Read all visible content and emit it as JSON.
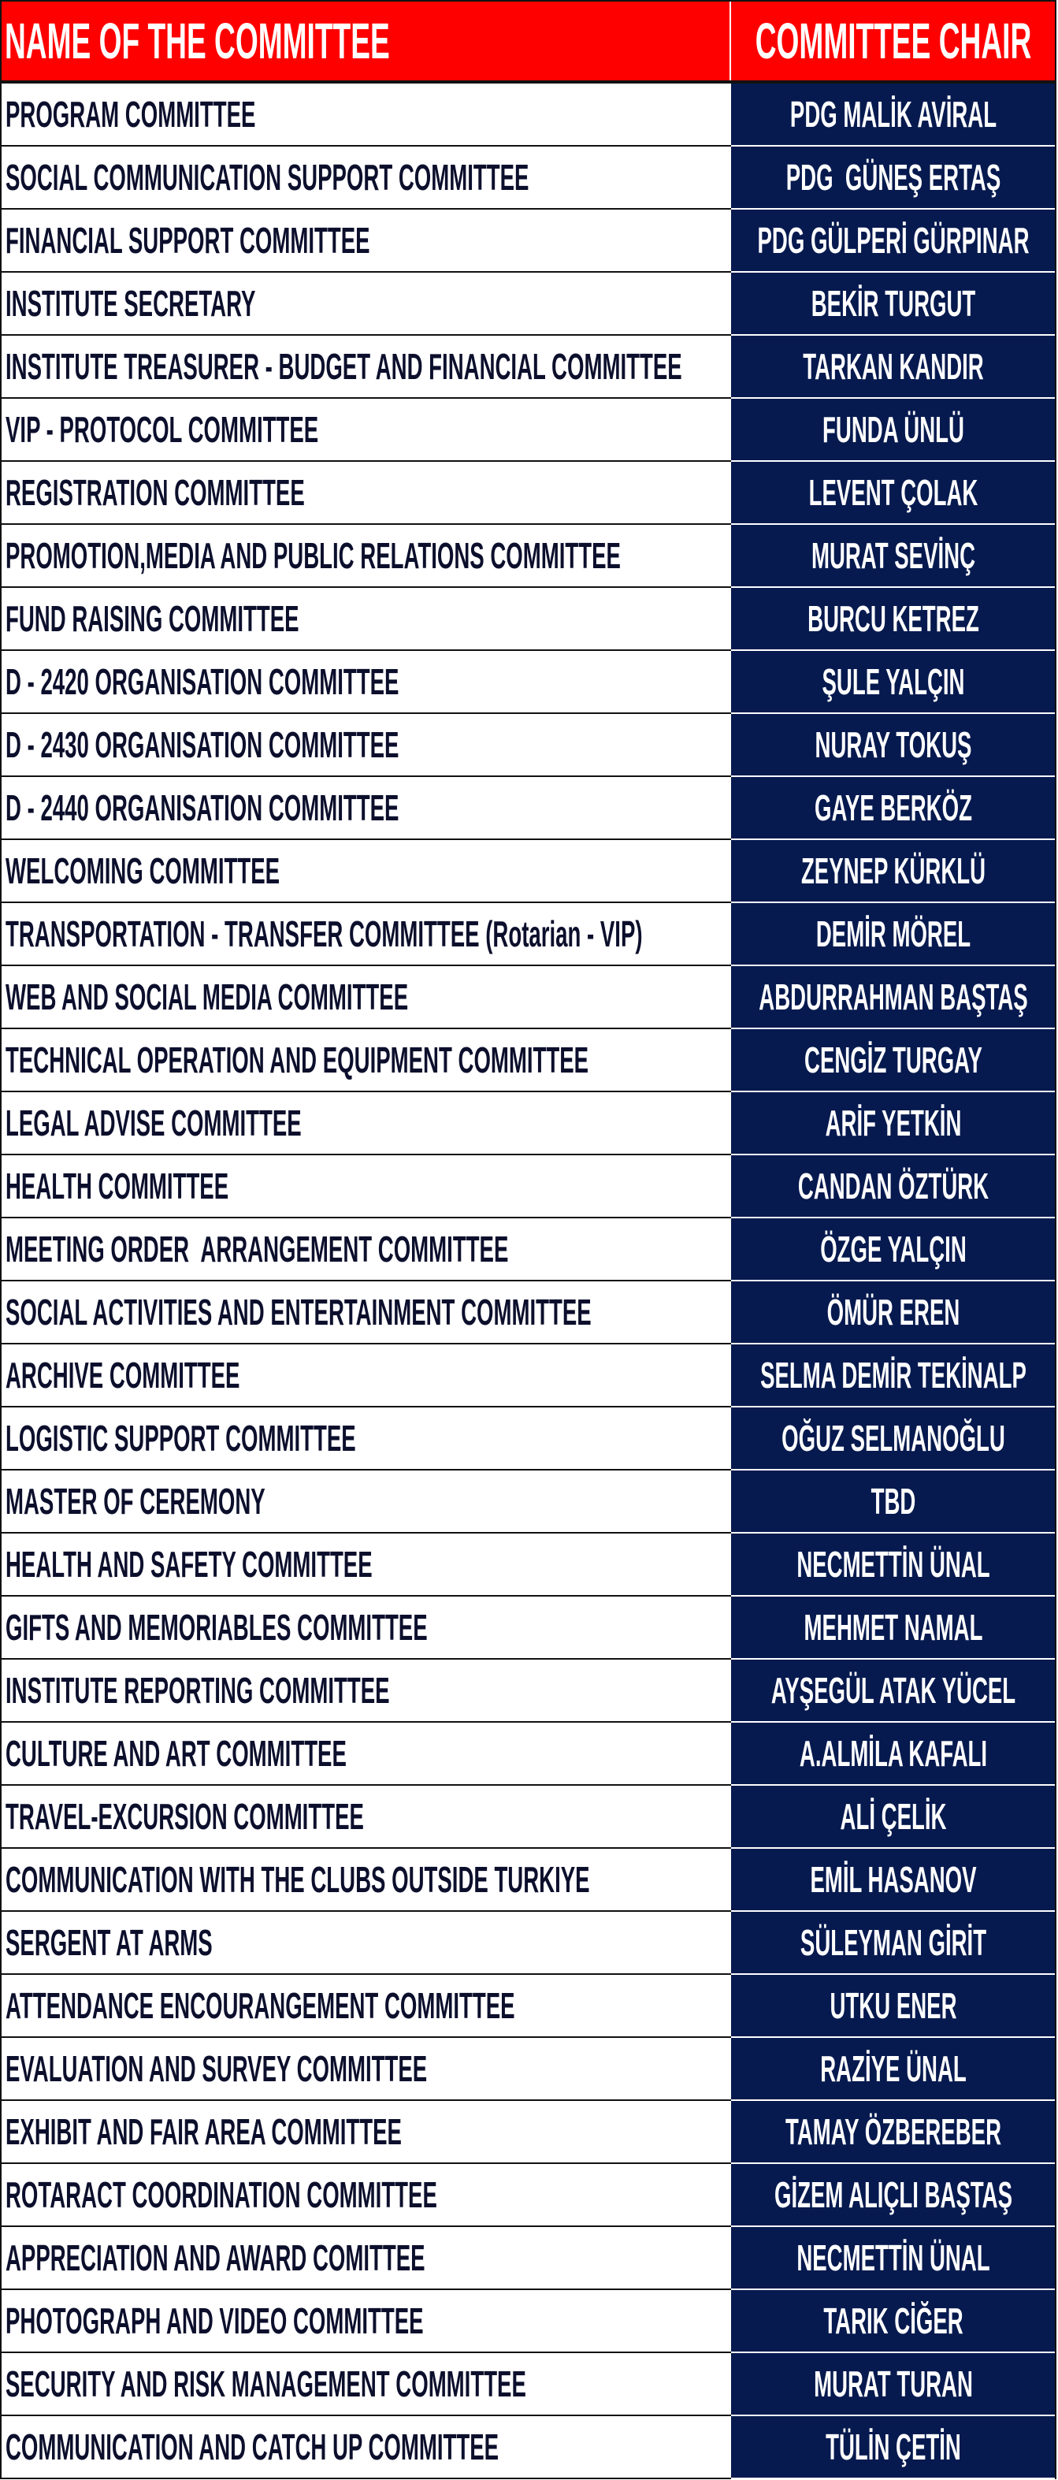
{
  "header": {
    "committee": "NAME OF THE COMMITTEE",
    "chair": "COMMITTEE CHAIR"
  },
  "colors": {
    "header_bg": "#ff0000",
    "chair_bg": "#061a4f",
    "header_text": "#ffffff"
  },
  "rows": [
    {
      "committee": "PROGRAM COMMITTEE",
      "chair": "PDG MALİK AVİRAL"
    },
    {
      "committee": "SOCIAL COMMUNICATION SUPPORT COMMITTEE",
      "chair": "PDG  GÜNEŞ ERTAŞ"
    },
    {
      "committee": "FINANCIAL SUPPORT COMMITTEE",
      "chair": "PDG GÜLPERİ GÜRPINAR"
    },
    {
      "committee": "INSTITUTE SECRETARY",
      "chair": "BEKİR TURGUT"
    },
    {
      "committee": "INSTITUTE TREASURER - BUDGET AND FINANCIAL COMMITTEE",
      "chair": "TARKAN KANDIR"
    },
    {
      "committee": "VIP - PROTOCOL COMMITTEE",
      "chair": "FUNDA ÜNLÜ"
    },
    {
      "committee": "REGISTRATION COMMITTEE",
      "chair": "LEVENT ÇOLAK"
    },
    {
      "committee": "PROMOTION,MEDIA AND PUBLIC RELATIONS COMMITTEE",
      "chair": "MURAT SEVİNÇ"
    },
    {
      "committee": "FUND RAISING COMMITTEE",
      "chair": "BURCU KETREZ"
    },
    {
      "committee": "D - 2420 ORGANISATION COMMITTEE",
      "chair": "ŞULE YALÇIN"
    },
    {
      "committee": "D - 2430 ORGANISATION COMMITTEE",
      "chair": "NURAY TOKUŞ"
    },
    {
      "committee": "D - 2440 ORGANISATION COMMITTEE",
      "chair": "GAYE BERKÖZ"
    },
    {
      "committee": "WELCOMING COMMITTEE",
      "chair": "ZEYNEP KÜRKLÜ"
    },
    {
      "committee": "TRANSPORTATION - TRANSFER COMMITTEE (Rotarian - VIP)",
      "chair": "DEMİR MÖREL"
    },
    {
      "committee": "WEB AND SOCIAL MEDIA COMMITTEE",
      "chair": "ABDURRAHMAN BAŞTAŞ"
    },
    {
      "committee": "TECHNICAL OPERATION AND EQUIPMENT COMMITTEE",
      "chair": "CENGİZ TURGAY"
    },
    {
      "committee": "LEGAL ADVISE COMMITTEE",
      "chair": "ARİF YETKİN"
    },
    {
      "committee": "HEALTH COMMITTEE",
      "chair": "CANDAN ÖZTÜRK"
    },
    {
      "committee": "MEETING ORDER  ARRANGEMENT COMMITTEE",
      "chair": "ÖZGE YALÇIN"
    },
    {
      "committee": "SOCIAL ACTIVITIES AND ENTERTAINMENT COMMITTEE",
      "chair": "ÖMÜR EREN"
    },
    {
      "committee": "ARCHIVE COMMITTEE",
      "chair": "SELMA DEMİR TEKİNALP"
    },
    {
      "committee": "LOGISTIC SUPPORT COMMITTEE",
      "chair": "OĞUZ SELMANOĞLU"
    },
    {
      "committee": "MASTER OF CEREMONY",
      "chair": "TBD"
    },
    {
      "committee": "HEALTH AND SAFETY COMMITTEE",
      "chair": "NECMETTİN ÜNAL"
    },
    {
      "committee": "GIFTS AND MEMORIABLES COMMITTEE",
      "chair": "MEHMET NAMAL"
    },
    {
      "committee": "INSTITUTE REPORTING COMMITTEE",
      "chair": "AYŞEGÜL ATAK YÜCEL"
    },
    {
      "committee": "CULTURE AND ART COMMITTEE",
      "chair": "A.ALMİLA KAFALI"
    },
    {
      "committee": "TRAVEL-EXCURSION COMMITTEE",
      "chair": "ALİ ÇELİK"
    },
    {
      "committee": "COMMUNICATION WITH THE CLUBS OUTSIDE TURKIYE",
      "chair": "EMİL HASANOV"
    },
    {
      "committee": "SERGENT AT ARMS",
      "chair": "SÜLEYMAN GİRİT"
    },
    {
      "committee": "ATTENDANCE ENCOURANGEMENT COMMITTEE",
      "chair": "UTKU ENER"
    },
    {
      "committee": "EVALUATION AND SURVEY COMMITTEE",
      "chair": "RAZİYE ÜNAL"
    },
    {
      "committee": "EXHIBIT AND FAIR AREA COMMITTEE",
      "chair": "TAMAY ÖZBEREBER"
    },
    {
      "committee": "ROTARACT COORDINATION COMMITTEE",
      "chair": "GİZEM ALIÇLI BAŞTAŞ"
    },
    {
      "committee": "APPRECIATION AND AWARD COMITTEE",
      "chair": "NECMETTİN ÜNAL"
    },
    {
      "committee": "PHOTOGRAPH AND VIDEO COMMITTEE",
      "chair": "TARIK CİĞER"
    },
    {
      "committee": "SECURITY AND RISK MANAGEMENT COMMITTEE",
      "chair": "MURAT TURAN"
    },
    {
      "committee": "COMMUNICATION AND CATCH UP COMMITTEE",
      "chair": "TÜLİN ÇETİN"
    }
  ]
}
